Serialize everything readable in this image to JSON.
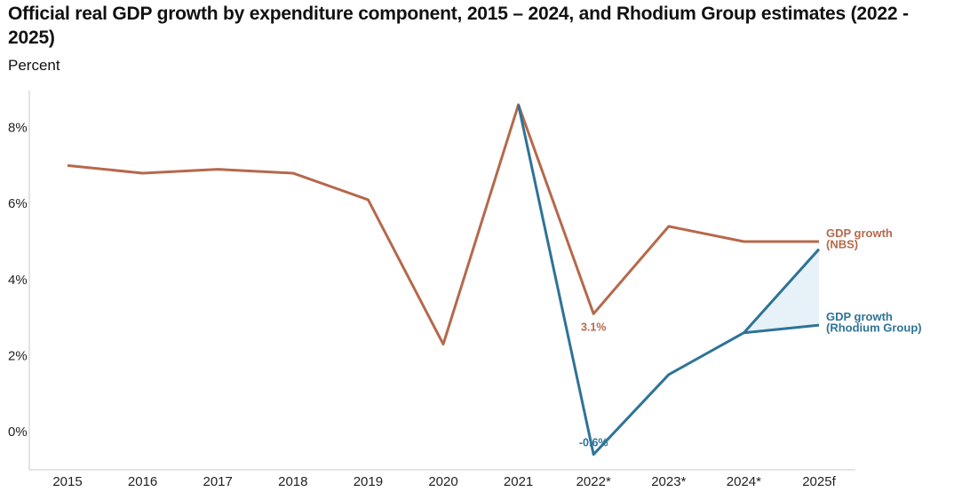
{
  "chart_data": {
    "type": "line",
    "title": "Official real GDP growth by expenditure component, 2015 – 2024, and Rhodium Group estimates (2022 - 2025)",
    "subtitle": "Percent",
    "categories": [
      "2015",
      "2016",
      "2017",
      "2018",
      "2019",
      "2020",
      "2021",
      "2022*",
      "2023*",
      "2024*",
      "2025f"
    ],
    "ylim": [
      -1,
      9
    ],
    "yticks": [
      0,
      2,
      4,
      6,
      8
    ],
    "ytick_labels": [
      "0%",
      "2%",
      "4%",
      "6%",
      "8%"
    ],
    "series": [
      {
        "name": "GDP growth (NBS)",
        "label_lines": [
          "GDP growth",
          "(NBS)"
        ],
        "color": "#b5694b",
        "values": [
          7.0,
          6.8,
          6.9,
          6.8,
          6.1,
          2.3,
          8.6,
          3.1,
          5.4,
          5.0,
          5.0
        ]
      },
      {
        "name": "GDP growth (Rhodium Group)",
        "label_lines": [
          "GDP growth",
          "(Rhodium Group)"
        ],
        "color": "#2e7397",
        "values": [
          null,
          null,
          null,
          null,
          null,
          null,
          8.6,
          -0.6,
          1.5,
          2.6,
          2.8
        ],
        "upper_range": [
          null,
          null,
          null,
          null,
          null,
          null,
          null,
          null,
          null,
          2.6,
          4.8
        ],
        "range_fill": "#e6f1f8"
      }
    ],
    "annotations": [
      {
        "text": "3.1%",
        "category": "2022*",
        "series": 0
      },
      {
        "text": "-0.6%",
        "category": "2022*",
        "series": 1
      }
    ]
  }
}
